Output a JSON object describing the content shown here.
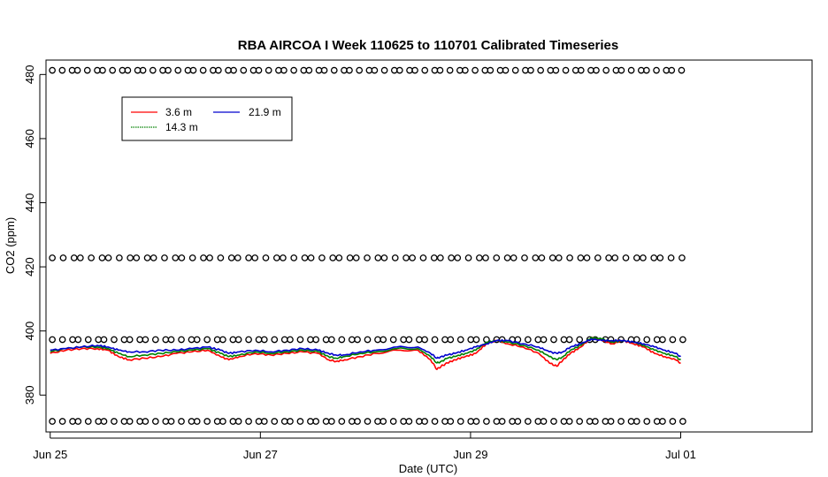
{
  "chart_data": {
    "type": "line",
    "title": "RBA AIRCOA I  Week 110625 to 110701  Calibrated Timeseries",
    "xlabel": "Date (UTC)",
    "ylabel": "CO2 (ppm)",
    "xlim": [
      -0.04,
      7.25
    ],
    "ylim": [
      368.5,
      484.5
    ],
    "x_ticks": [
      {
        "x": 0,
        "label": "Jun 25"
      },
      {
        "x": 2,
        "label": "Jun 27"
      },
      {
        "x": 4,
        "label": "Jun 29"
      },
      {
        "x": 6,
        "label": "Jul 01"
      }
    ],
    "y_ticks": [
      {
        "y": 380,
        "label": "380"
      },
      {
        "y": 400,
        "label": "400"
      },
      {
        "y": 420,
        "label": "420"
      },
      {
        "y": 440,
        "label": "440"
      },
      {
        "y": 460,
        "label": "460"
      },
      {
        "y": 480,
        "label": "480"
      }
    ],
    "grid": false,
    "legend": {
      "position": "top-left",
      "entries": [
        {
          "name": "3.6 m",
          "color": "#ff0000"
        },
        {
          "name": "21.9 m",
          "color": "#0000cd"
        },
        {
          "name": "14.3 m",
          "color": "#008000"
        }
      ]
    },
    "series": [
      {
        "name": "3.6 m",
        "color": "#ff0000",
        "x": [
          0,
          0.15,
          0.3,
          0.45,
          0.55,
          0.65,
          0.75,
          0.9,
          1.05,
          1.2,
          1.35,
          1.5,
          1.62,
          1.7,
          1.8,
          1.95,
          2.1,
          2.25,
          2.4,
          2.55,
          2.65,
          2.72,
          2.8,
          2.95,
          3.1,
          3.3,
          3.5,
          3.62,
          3.68,
          3.72,
          3.78,
          3.85,
          3.95,
          4.05,
          4.15,
          4.25,
          4.35,
          4.5,
          4.65,
          4.75,
          4.82,
          4.88,
          4.95,
          5.05,
          5.15,
          5.25,
          5.35,
          5.45,
          5.55,
          5.65,
          5.75,
          5.85,
          5.95,
          6.0
        ],
        "y": [
          393,
          394,
          394.5,
          394.5,
          394,
          392,
          391,
          391.5,
          392,
          393,
          393.5,
          394,
          392,
          391,
          392,
          393,
          392.5,
          393,
          393.5,
          393,
          391,
          390.5,
          391,
          392,
          393,
          394,
          394,
          391,
          388,
          389,
          390,
          391,
          392,
          393,
          396,
          397,
          396,
          395,
          393,
          390,
          389,
          391,
          393,
          395,
          398,
          397,
          396,
          397,
          396,
          395,
          393,
          392,
          391,
          390
        ]
      },
      {
        "name": "14.3 m",
        "color": "#008000",
        "x": [
          0,
          0.15,
          0.3,
          0.45,
          0.55,
          0.65,
          0.75,
          0.9,
          1.05,
          1.2,
          1.35,
          1.5,
          1.62,
          1.7,
          1.8,
          1.95,
          2.1,
          2.25,
          2.4,
          2.55,
          2.65,
          2.72,
          2.8,
          2.95,
          3.1,
          3.3,
          3.5,
          3.62,
          3.68,
          3.72,
          3.78,
          3.85,
          3.95,
          4.05,
          4.15,
          4.25,
          4.35,
          4.5,
          4.65,
          4.75,
          4.82,
          4.88,
          4.95,
          5.05,
          5.15,
          5.25,
          5.35,
          5.45,
          5.55,
          5.65,
          5.75,
          5.85,
          5.95,
          6.0
        ],
        "y": [
          393.5,
          394.5,
          395,
          395,
          394.5,
          393,
          392,
          392.5,
          393,
          393.5,
          394,
          394.5,
          393,
          392,
          392.5,
          393.5,
          393,
          393.5,
          394,
          393.5,
          392,
          391.5,
          392,
          393,
          393.5,
          394.5,
          394.5,
          392,
          390,
          390.5,
          391.5,
          392,
          393,
          394,
          396.5,
          397,
          396.5,
          395.5,
          394,
          392,
          391,
          392,
          394,
          395.5,
          398,
          397.5,
          396.5,
          397,
          396.5,
          395.5,
          394,
          393,
          392,
          391
        ]
      },
      {
        "name": "21.9 m",
        "color": "#0000cd",
        "x": [
          0,
          0.15,
          0.3,
          0.45,
          0.55,
          0.65,
          0.75,
          0.9,
          1.05,
          1.2,
          1.35,
          1.5,
          1.62,
          1.7,
          1.8,
          1.95,
          2.1,
          2.25,
          2.4,
          2.55,
          2.65,
          2.72,
          2.8,
          2.95,
          3.1,
          3.3,
          3.5,
          3.62,
          3.68,
          3.72,
          3.78,
          3.85,
          3.95,
          4.05,
          4.15,
          4.25,
          4.35,
          4.5,
          4.65,
          4.75,
          4.82,
          4.88,
          4.95,
          5.05,
          5.15,
          5.25,
          5.35,
          5.45,
          5.55,
          5.65,
          5.75,
          5.85,
          5.95,
          6.0
        ],
        "y": [
          394,
          394.5,
          395,
          395.5,
          395,
          394,
          393.5,
          393.5,
          394,
          394,
          394.5,
          395,
          394,
          393,
          393.5,
          394,
          393.5,
          394,
          394.5,
          394,
          393,
          392.5,
          392.5,
          393.5,
          394,
          395,
          395,
          393,
          391.5,
          392,
          392.5,
          393,
          394,
          395,
          396,
          397,
          397,
          396,
          395,
          393.5,
          393,
          393.5,
          395,
          396,
          397.5,
          397,
          397,
          397,
          396.5,
          396,
          395,
          394,
          393,
          392
        ]
      }
    ],
    "calibration_levels": [
      {
        "y": 481.3,
        "count": 77
      },
      {
        "y": 422.8,
        "count": 69
      },
      {
        "y": 397.3,
        "count": 75
      },
      {
        "y": 371.8,
        "count": 75
      }
    ]
  }
}
